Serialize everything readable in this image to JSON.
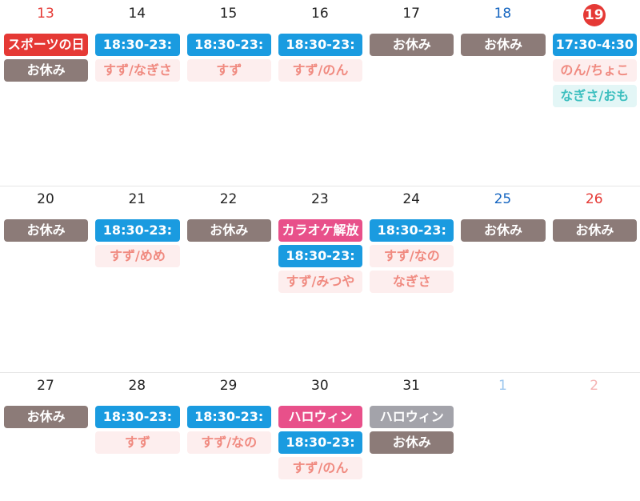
{
  "weeks": [
    {
      "days": [
        {
          "number": 13,
          "color": "#e53935",
          "events": [
            {
              "text": "スポーツの日",
              "bg": "#e53935",
              "fg": "#ffffff"
            },
            {
              "text": "お休み",
              "bg": "#8c7b78",
              "fg": "#ffffff"
            }
          ]
        },
        {
          "number": 14,
          "color": "#222222",
          "events": [
            {
              "text": "18:30-23:",
              "bg": "#1a9be0",
              "fg": "#ffffff"
            },
            {
              "text": "すず/なぎさ",
              "bg": "#fdeeee",
              "fg": "#f08a80"
            }
          ]
        },
        {
          "number": 15,
          "color": "#222222",
          "events": [
            {
              "text": "18:30-23:",
              "bg": "#1a9be0",
              "fg": "#ffffff"
            },
            {
              "text": "すず",
              "bg": "#fdeeee",
              "fg": "#f08a80"
            }
          ]
        },
        {
          "number": 16,
          "color": "#222222",
          "events": [
            {
              "text": "18:30-23:",
              "bg": "#1a9be0",
              "fg": "#ffffff"
            },
            {
              "text": "すず/のん",
              "bg": "#fdeeee",
              "fg": "#f08a80"
            }
          ]
        },
        {
          "number": 17,
          "color": "#222222",
          "events": [
            {
              "text": "お休み",
              "bg": "#8c7b78",
              "fg": "#ffffff"
            }
          ]
        },
        {
          "number": 18,
          "color": "#1565c0",
          "events": [
            {
              "text": "お休み",
              "bg": "#8c7b78",
              "fg": "#ffffff"
            }
          ]
        },
        {
          "number": 19,
          "color": "#ffffff",
          "today": true,
          "events": [
            {
              "text": "17:30-4:30",
              "bg": "#1a9be0",
              "fg": "#ffffff"
            },
            {
              "text": "のん/ちょこ",
              "bg": "#fdeeee",
              "fg": "#f08a80"
            },
            {
              "text": "なぎさ/おも",
              "bg": "#e3f6f6",
              "fg": "#3dbfbf"
            }
          ]
        }
      ]
    },
    {
      "days": [
        {
          "number": 20,
          "color": "#222222",
          "events": [
            {
              "text": "お休み",
              "bg": "#8c7b78",
              "fg": "#ffffff"
            }
          ]
        },
        {
          "number": 21,
          "color": "#222222",
          "events": [
            {
              "text": "18:30-23:",
              "bg": "#1a9be0",
              "fg": "#ffffff"
            },
            {
              "text": "すず/めめ",
              "bg": "#fdeeee",
              "fg": "#f08a80"
            }
          ]
        },
        {
          "number": 22,
          "color": "#222222",
          "events": [
            {
              "text": "お休み",
              "bg": "#8c7b78",
              "fg": "#ffffff"
            }
          ]
        },
        {
          "number": 23,
          "color": "#222222",
          "events": [
            {
              "text": "カラオケ解放",
              "bg": "#e8508a",
              "fg": "#ffffff"
            },
            {
              "text": "18:30-23:",
              "bg": "#1a9be0",
              "fg": "#ffffff"
            },
            {
              "text": "すず/みつや",
              "bg": "#fdeeee",
              "fg": "#f08a80"
            }
          ]
        },
        {
          "number": 24,
          "color": "#222222",
          "events": [
            {
              "text": "18:30-23:",
              "bg": "#1a9be0",
              "fg": "#ffffff"
            },
            {
              "text": "すず/なの",
              "bg": "#fdeeee",
              "fg": "#f08a80"
            },
            {
              "text": "なぎさ",
              "bg": "#fdeeee",
              "fg": "#f08a80"
            }
          ]
        },
        {
          "number": 25,
          "color": "#1565c0",
          "events": [
            {
              "text": "お休み",
              "bg": "#8c7b78",
              "fg": "#ffffff"
            }
          ]
        },
        {
          "number": 26,
          "color": "#e53935",
          "events": [
            {
              "text": "お休み",
              "bg": "#8c7b78",
              "fg": "#ffffff"
            }
          ]
        }
      ]
    },
    {
      "days": [
        {
          "number": 27,
          "color": "#222222",
          "events": [
            {
              "text": "お休み",
              "bg": "#8c7b78",
              "fg": "#ffffff"
            }
          ]
        },
        {
          "number": 28,
          "color": "#222222",
          "events": [
            {
              "text": "18:30-23:",
              "bg": "#1a9be0",
              "fg": "#ffffff"
            },
            {
              "text": "すず",
              "bg": "#fdeeee",
              "fg": "#f08a80"
            }
          ]
        },
        {
          "number": 29,
          "color": "#222222",
          "events": [
            {
              "text": "18:30-23:",
              "bg": "#1a9be0",
              "fg": "#ffffff"
            },
            {
              "text": "すず/なの",
              "bg": "#fdeeee",
              "fg": "#f08a80"
            }
          ]
        },
        {
          "number": 30,
          "color": "#222222",
          "events": [
            {
              "text": "ハロウィン",
              "bg": "#e8508a",
              "fg": "#ffffff"
            },
            {
              "text": "18:30-23:",
              "bg": "#1a9be0",
              "fg": "#ffffff"
            },
            {
              "text": "すず/のん",
              "bg": "#fdeeee",
              "fg": "#f08a80"
            }
          ]
        },
        {
          "number": 31,
          "color": "#222222",
          "events": [
            {
              "text": "ハロウィン",
              "bg": "#a3a3aa",
              "fg": "#ffffff"
            },
            {
              "text": "お休み",
              "bg": "#8c7b78",
              "fg": "#ffffff"
            }
          ]
        },
        {
          "number": 1,
          "color": "#9cc6ee",
          "events": []
        },
        {
          "number": 2,
          "color": "#f5b3b3",
          "events": []
        }
      ]
    }
  ]
}
